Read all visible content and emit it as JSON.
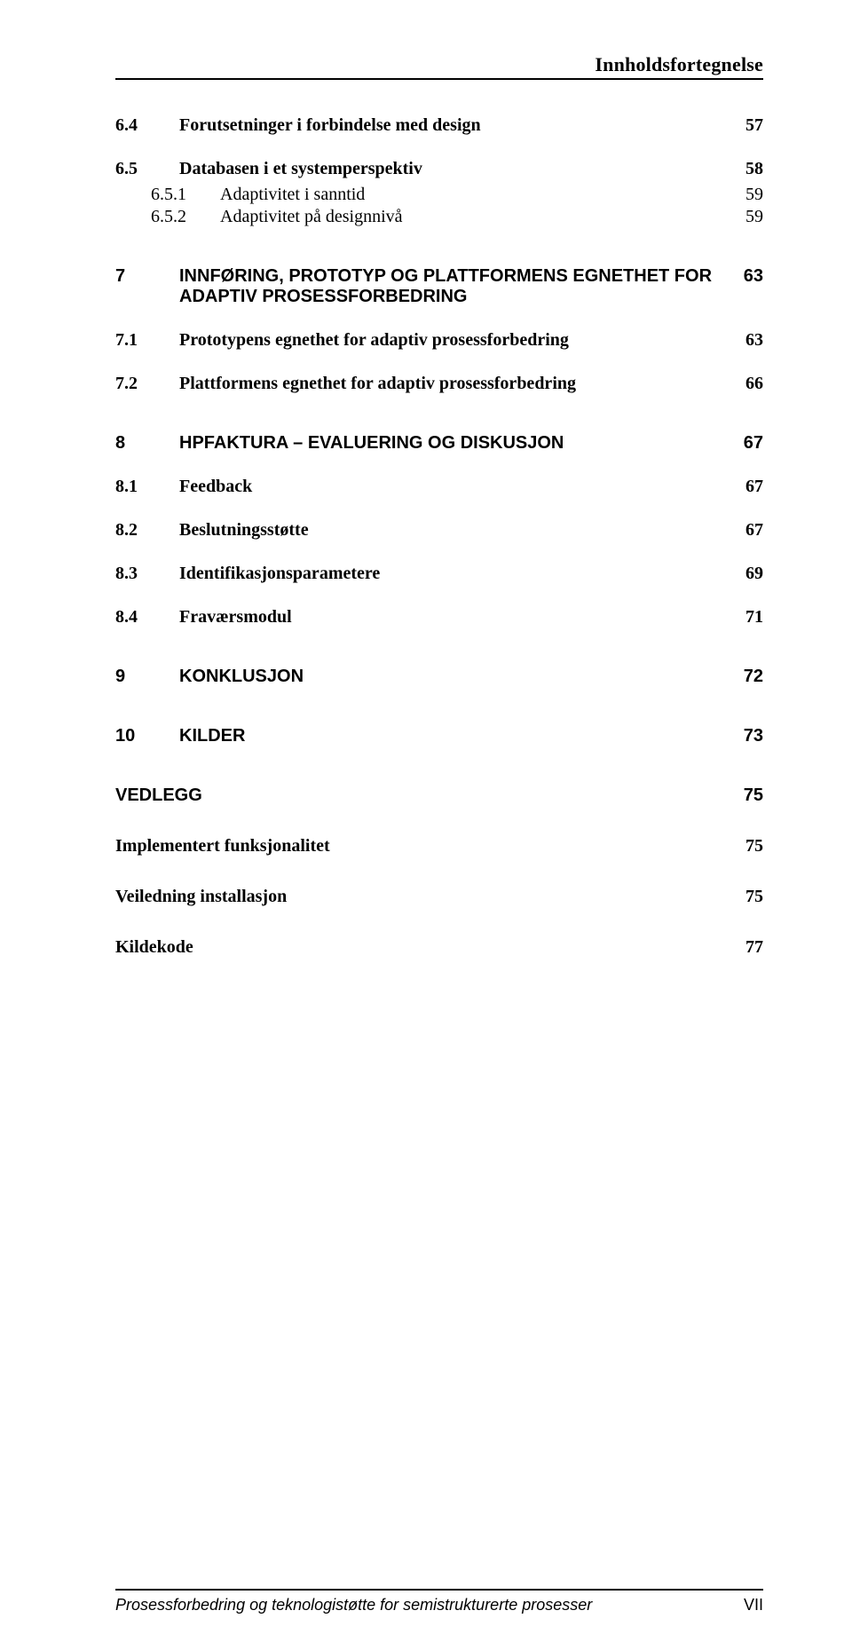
{
  "header": {
    "title": "Innholdsfortegnelse"
  },
  "toc": [
    {
      "level": 2,
      "num": "6.4",
      "title": "Forutsetninger i forbindelse med design",
      "page": "57",
      "first": true
    },
    {
      "level": 2,
      "num": "6.5",
      "title": "Databasen i et systemperspektiv",
      "page": "58"
    },
    {
      "level": 3,
      "num": "6.5.1",
      "title": "Adaptivitet i sanntid",
      "page": "59"
    },
    {
      "level": 3,
      "num": "6.5.2",
      "title": "Adaptivitet på designnivå",
      "page": "59"
    },
    {
      "level": 1,
      "num": "7",
      "title": "INNFØRING, PROTOTYP OG PLATTFORMENS EGNETHET FOR ADAPTIV PROSESSFORBEDRING",
      "page": "63"
    },
    {
      "level": 2,
      "num": "7.1",
      "title": "Prototypens egnethet for adaptiv prosessforbedring",
      "page": "63"
    },
    {
      "level": 2,
      "num": "7.2",
      "title": "Plattformens egnethet for adaptiv prosessforbedring",
      "page": "66"
    },
    {
      "level": 1,
      "num": "8",
      "title": "HPFAKTURA – EVALUERING OG DISKUSJON",
      "page": "67"
    },
    {
      "level": 2,
      "num": "8.1",
      "title": "Feedback",
      "page": "67"
    },
    {
      "level": 2,
      "num": "8.2",
      "title": "Beslutningsstøtte",
      "page": "67"
    },
    {
      "level": 2,
      "num": "8.3",
      "title": "Identifikasjonsparametere",
      "page": "69"
    },
    {
      "level": 2,
      "num": "8.4",
      "title": "Fraværsmodul",
      "page": "71"
    },
    {
      "level": 1,
      "num": "9",
      "title": "KONKLUSJON",
      "page": "72"
    },
    {
      "level": 1,
      "num": "10",
      "title": "KILDER",
      "page": "73"
    },
    {
      "level": 1,
      "num": "",
      "title": "VEDLEGG",
      "page": "75",
      "appendixHead": true
    },
    {
      "level": "a",
      "num": "",
      "title": "Implementert funksjonalitet",
      "page": "75"
    },
    {
      "level": "a",
      "num": "",
      "title": "Veiledning installasjon",
      "page": "75"
    },
    {
      "level": "a",
      "num": "",
      "title": "Kildekode",
      "page": "77"
    }
  ],
  "footer": {
    "text": "Prosessforbedring og teknologistøtte for semistrukturerte prosesser",
    "pageNumeral": "VII"
  }
}
